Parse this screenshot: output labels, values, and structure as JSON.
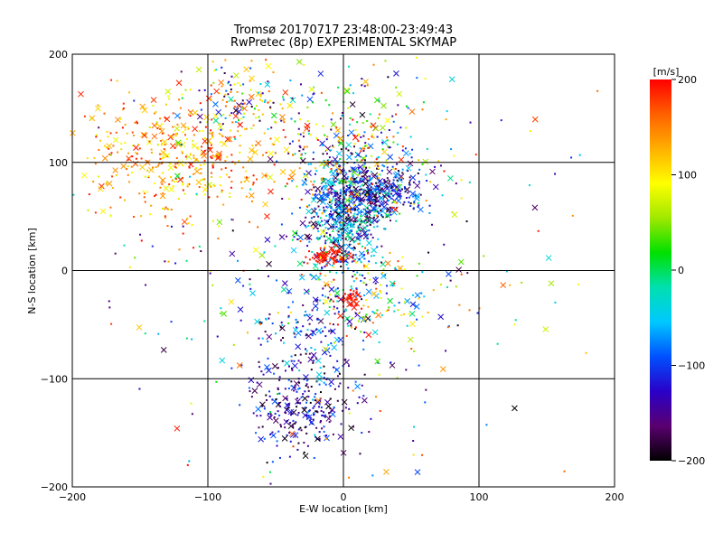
{
  "chart_data": {
    "type": "scatter",
    "title": "Tromsø 20170717 23:48:00-23:49:43",
    "subtitle": "RwPretec (8p) EXPERIMENTAL SKYMAP",
    "xlabel": "E-W location [km]",
    "ylabel": "N-S location [km]",
    "xlim": [
      -200,
      200
    ],
    "ylim": [
      -200,
      200
    ],
    "x_ticks": [
      -200,
      -100,
      0,
      100,
      200
    ],
    "y_ticks": [
      -200,
      -100,
      0,
      100,
      200
    ],
    "x_tick_labels": [
      "−200",
      "−100",
      "0",
      "100",
      "200"
    ],
    "y_tick_labels": [
      "−200",
      "−100",
      "0",
      "100",
      "200"
    ],
    "grid": true,
    "colorbar": {
      "label": "[m/s]",
      "range": [
        -200,
        200
      ],
      "ticks": [
        200,
        100,
        0,
        -100,
        -200
      ],
      "tick_labels": [
        "200",
        "100",
        "0",
        "−100",
        "−200"
      ],
      "colors": [
        "#000000",
        "#5a0070",
        "#2a00c8",
        "#0050ff",
        "#00c8ff",
        "#00e0b0",
        "#00e000",
        "#a0e800",
        "#ffff00",
        "#ffb000",
        "#ff6000",
        "#ff0000"
      ]
    },
    "markers": [
      "dot",
      "x"
    ],
    "clusters": [
      {
        "cx": 0,
        "cy": 50,
        "sx": 14,
        "sy": 30,
        "n": 500,
        "vmin": -200,
        "vmax": 0
      },
      {
        "cx": 22,
        "cy": 72,
        "sx": 18,
        "sy": 12,
        "n": 320,
        "vmin": -200,
        "vmax": -60
      },
      {
        "cx": 10,
        "cy": 105,
        "sx": 28,
        "sy": 35,
        "n": 340,
        "vmin": -200,
        "vmax": 200
      },
      {
        "cx": -115,
        "cy": 105,
        "sx": 38,
        "sy": 30,
        "n": 460,
        "vmin": 70,
        "vmax": 200
      },
      {
        "cx": -72,
        "cy": 160,
        "sx": 22,
        "sy": 15,
        "n": 120,
        "vmin": -200,
        "vmax": 200
      },
      {
        "cx": -30,
        "cy": -130,
        "sx": 18,
        "sy": 20,
        "n": 220,
        "vmin": -200,
        "vmax": -80
      },
      {
        "cx": -28,
        "cy": -60,
        "sx": 22,
        "sy": 35,
        "n": 200,
        "vmin": -200,
        "vmax": -40
      },
      {
        "cx": 5,
        "cy": -25,
        "sx": 5,
        "sy": 4,
        "n": 40,
        "vmin": 180,
        "vmax": 200
      },
      {
        "cx": -10,
        "cy": 13,
        "sx": 8,
        "sy": 4,
        "n": 80,
        "vmin": 180,
        "vmax": 200
      },
      {
        "cx": 20,
        "cy": -20,
        "sx": 25,
        "sy": 20,
        "n": 120,
        "vmin": -120,
        "vmax": 200
      },
      {
        "cx": 0,
        "cy": 0,
        "sx": 85,
        "sy": 95,
        "n": 300,
        "vmin": -200,
        "vmax": 200
      }
    ]
  }
}
